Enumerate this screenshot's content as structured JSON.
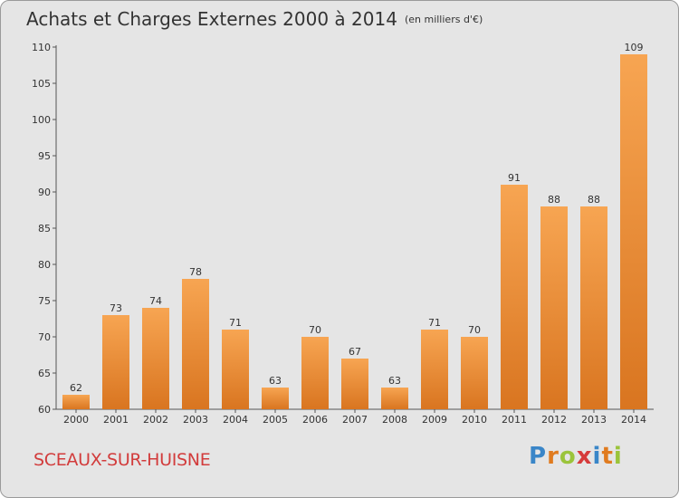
{
  "title": "Achats et Charges Externes 2000 à 2014",
  "subtitle": "(en milliers d'€)",
  "commune": "SCEAUX-SUR-HUISNE",
  "logo": {
    "letters": [
      "P",
      "r",
      "o",
      "x",
      "i",
      "t",
      "i"
    ],
    "colors": [
      "#3a86c8",
      "#e07b1f",
      "#9bc43b",
      "#d63b3b",
      "#3a86c8",
      "#e07b1f",
      "#9bc43b"
    ]
  },
  "colors": {
    "bar_top": "#f7a552",
    "bar_bottom": "#d97520",
    "text": "#333333",
    "commune": "#d23c3c"
  },
  "chart_data": {
    "type": "bar",
    "title": "Achats et Charges Externes 2000 à 2014",
    "subtitle": "(en milliers d'€)",
    "categories": [
      "2000",
      "2001",
      "2002",
      "2003",
      "2004",
      "2005",
      "2006",
      "2007",
      "2008",
      "2009",
      "2010",
      "2011",
      "2012",
      "2013",
      "2014"
    ],
    "values": [
      62,
      73,
      74,
      78,
      71,
      63,
      70,
      67,
      63,
      71,
      70,
      91,
      88,
      88,
      109
    ],
    "ylim": [
      60,
      110
    ],
    "yticks": [
      60,
      65,
      70,
      75,
      80,
      85,
      90,
      95,
      100,
      105,
      110
    ],
    "grid": false
  }
}
